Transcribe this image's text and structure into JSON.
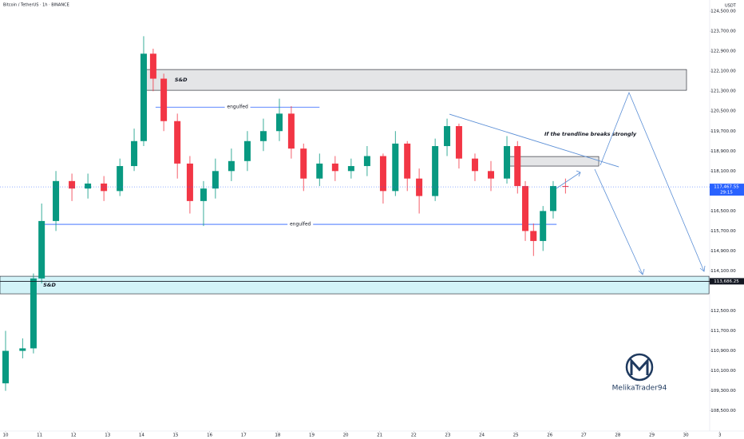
{
  "chart_data": {
    "type": "candlestick",
    "title": "Bitcoin / TetherUS · 1h · BINANCE",
    "currency": "USDT",
    "up_color": "#089981",
    "down_color": "#f23645",
    "xlim": [
      -0.164,
      21.71
    ],
    "ylim": [
      107690,
      124950
    ],
    "xticks": [
      {
        "value": 0,
        "label": "10"
      },
      {
        "value": 1,
        "label": "11"
      },
      {
        "value": 2,
        "label": "12"
      },
      {
        "value": 3,
        "label": "13"
      },
      {
        "value": 4,
        "label": "14"
      },
      {
        "value": 5,
        "label": "15"
      },
      {
        "value": 6,
        "label": "16"
      },
      {
        "value": 7,
        "label": "17"
      },
      {
        "value": 8,
        "label": "18"
      },
      {
        "value": 9,
        "label": "19"
      },
      {
        "value": 10,
        "label": "20"
      },
      {
        "value": 11,
        "label": "21"
      },
      {
        "value": 12,
        "label": "22"
      },
      {
        "value": 13,
        "label": "23"
      },
      {
        "value": 14,
        "label": "24"
      },
      {
        "value": 15,
        "label": "25"
      },
      {
        "value": 16,
        "label": "26"
      },
      {
        "value": 17,
        "label": "27"
      },
      {
        "value": 18,
        "label": "28"
      },
      {
        "value": 19,
        "label": "29"
      },
      {
        "value": 20,
        "label": "30"
      },
      {
        "value": 21,
        "label": "3"
      }
    ],
    "yticks": [
      {
        "value": 124500,
        "label": "124,500.00"
      },
      {
        "value": 123700,
        "label": "123,700.00"
      },
      {
        "value": 122900,
        "label": "122,900.00"
      },
      {
        "value": 122100,
        "label": "122,100.00"
      },
      {
        "value": 121300,
        "label": "121,300.00"
      },
      {
        "value": 120500,
        "label": "120,500.00"
      },
      {
        "value": 119700,
        "label": "119,700.00"
      },
      {
        "value": 118900,
        "label": "118,900.00"
      },
      {
        "value": 118100,
        "label": "118,100.00"
      },
      {
        "value": 116500,
        "label": "116,500.00"
      },
      {
        "value": 115700,
        "label": "115,700.00"
      },
      {
        "value": 114900,
        "label": "114,900.00"
      },
      {
        "value": 114100,
        "label": "114,100.00"
      },
      {
        "value": 112500,
        "label": "112,500.00"
      },
      {
        "value": 111700,
        "label": "111,700.00"
      },
      {
        "value": 110900,
        "label": "110,900.00"
      },
      {
        "value": 110100,
        "label": "110,100.00"
      },
      {
        "value": 109300,
        "label": "109,300.00"
      },
      {
        "value": 108500,
        "label": "108,500.00"
      }
    ],
    "candles": {
      "x": [
        0,
        0.5,
        0.82,
        1.06,
        1.48,
        1.95,
        2.42,
        2.89,
        3.36,
        3.78,
        4.06,
        4.34,
        4.65,
        5.05,
        5.42,
        5.82,
        6.17,
        6.64,
        7.11,
        7.58,
        8.05,
        8.4,
        8.76,
        9.23,
        9.69,
        10.16,
        10.63,
        11.1,
        11.46,
        11.81,
        12.16,
        12.63,
        12.98,
        13.33,
        13.8,
        14.27,
        14.74,
        15.05,
        15.28,
        15.52,
        15.8,
        16.1,
        16.46
      ],
      "open": [
        109600,
        110900,
        111000,
        113800,
        116100,
        117700,
        117400,
        117600,
        117300,
        118300,
        119300,
        122800,
        121800,
        120100,
        118400,
        116900,
        117400,
        118100,
        118500,
        119300,
        119700,
        120400,
        119000,
        117800,
        118400,
        118100,
        118300,
        118700,
        117300,
        119200,
        117800,
        117100,
        119100,
        119900,
        118600,
        118100,
        117800,
        119100,
        117500,
        115700,
        115300,
        116500,
        117500
      ],
      "high": [
        111700,
        111400,
        114000,
        116800,
        118100,
        118000,
        118000,
        117900,
        118600,
        119800,
        123500,
        123000,
        122000,
        120400,
        118700,
        117700,
        118600,
        119000,
        119700,
        120200,
        121000,
        120700,
        119200,
        118800,
        118700,
        118600,
        119100,
        118800,
        119700,
        119300,
        118200,
        119400,
        120200,
        120000,
        118800,
        118500,
        119500,
        119300,
        117700,
        116000,
        116700,
        117700,
        117800
      ],
      "low": [
        109300,
        110600,
        110800,
        113600,
        115700,
        116900,
        117000,
        116900,
        117100,
        118100,
        119100,
        121300,
        119700,
        117800,
        116400,
        115900,
        117000,
        117700,
        118100,
        118900,
        119300,
        118600,
        117300,
        117500,
        117700,
        117800,
        117900,
        116800,
        117100,
        117300,
        116400,
        116900,
        118700,
        118200,
        117700,
        117300,
        117600,
        117200,
        115300,
        114700,
        114900,
        116200,
        117200
      ],
      "close": [
        110900,
        111000,
        113800,
        116100,
        117700,
        117400,
        117600,
        117300,
        118300,
        119300,
        122800,
        121800,
        120100,
        118400,
        116900,
        117400,
        118100,
        118500,
        119300,
        119700,
        120400,
        119000,
        117800,
        118400,
        118100,
        118300,
        118700,
        117300,
        119200,
        117800,
        117100,
        119100,
        119900,
        118600,
        118100,
        117800,
        119100,
        117500,
        115700,
        115300,
        116500,
        117500,
        117467.55
      ]
    },
    "price_labels": [
      {
        "value": 117467.55,
        "label": "117,467.55",
        "timer": "29:15",
        "color": "#2962ff"
      },
      {
        "value": 113686.25,
        "label": "113,686.25",
        "color": "#131722"
      }
    ],
    "zones": [
      {
        "label": "S&D",
        "top": 122166,
        "bottom": 121335,
        "start": 4.03,
        "end": 20.02
      },
      {
        "label": "S&D",
        "top": 113888,
        "bottom": 113185,
        "start": -0.164,
        "end": 20.68
      }
    ],
    "levels": [
      {
        "label": "engulfed",
        "price": 120660,
        "start": 4.41,
        "end": 9.23
      },
      {
        "label": "engulfed",
        "price": 115966,
        "start": 1.13,
        "end": 16.2
      }
    ],
    "trendline": {
      "label": "If the trendline breaks strongly",
      "start": [
        13.05,
        120376
      ],
      "end": [
        18.03,
        118267
      ]
    },
    "retest_box": {
      "top": 118682,
      "bottom": 118300,
      "start": 14.77,
      "end": 17.44
    },
    "author": "MelikaTrader94"
  }
}
